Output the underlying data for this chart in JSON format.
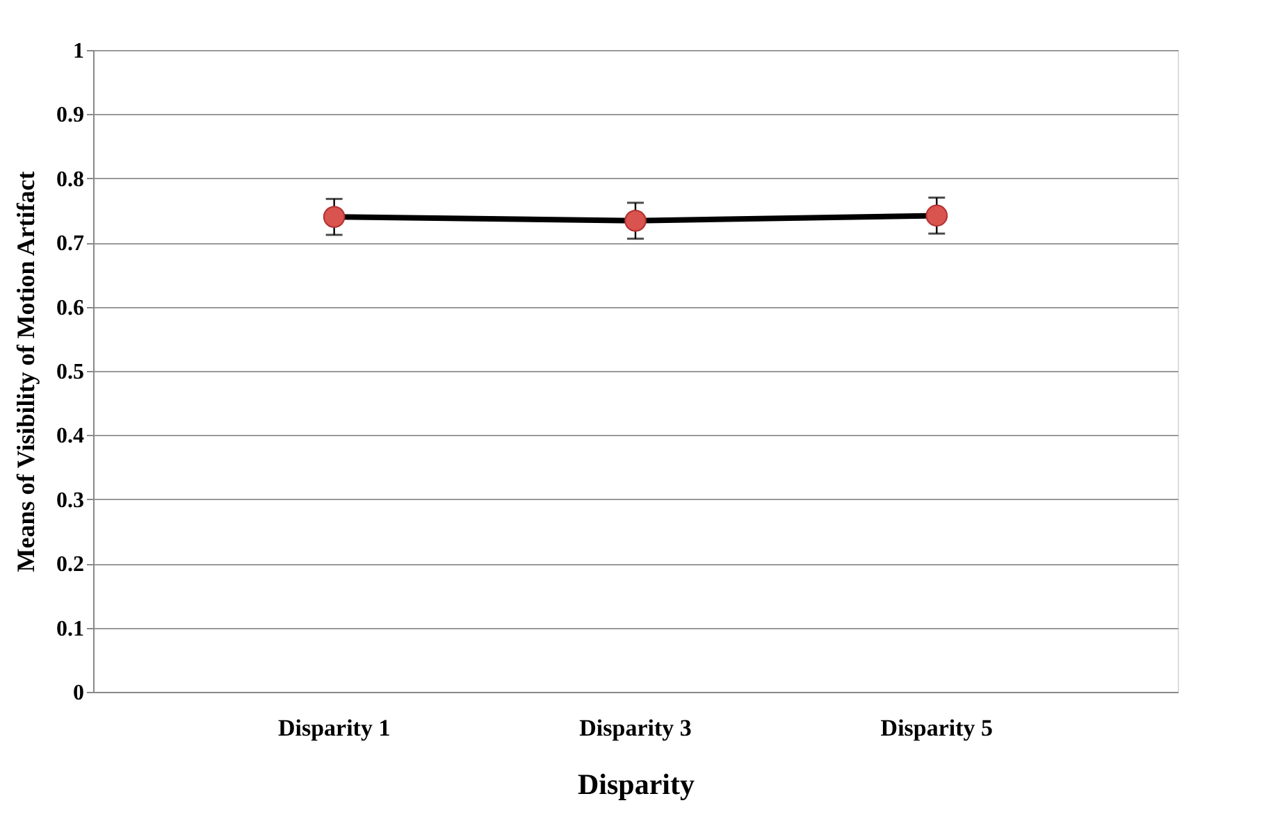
{
  "chart_data": {
    "type": "line",
    "xlabel": "Disparity",
    "ylabel": "Means of Visibility of Motion Artifact",
    "categories": [
      "Disparity 1",
      "Disparity 3",
      "Disparity 5"
    ],
    "series": [
      {
        "color": "#000000",
        "colors": [
          "#d9534f",
          "#d9534f",
          "#d9534f"
        ],
        "values": [
          0.74,
          0.734,
          0.742
        ],
        "errors": [
          0.028,
          0.028,
          0.028
        ]
      }
    ],
    "ylim": [
      0,
      1
    ],
    "yticks": [
      0,
      0.1,
      0.2,
      0.3,
      0.4,
      0.5,
      0.6,
      0.7,
      0.8,
      0.9,
      1
    ],
    "grid": "y",
    "marker": "circle",
    "line_style": "solid"
  }
}
